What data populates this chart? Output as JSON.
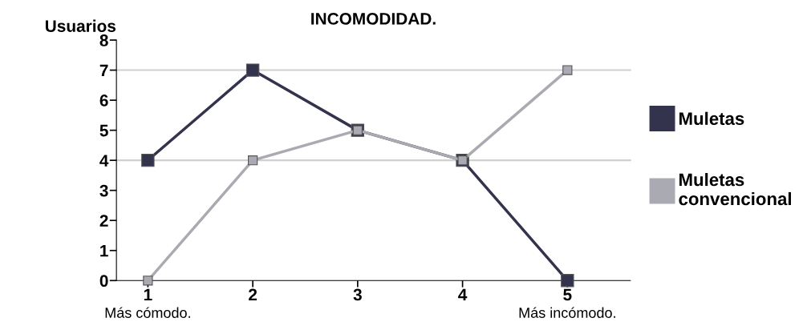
{
  "chart_data": {
    "type": "line",
    "title": "INCOMODIDAD.",
    "ylabel": "Usuarios",
    "x": [
      1,
      2,
      3,
      4,
      5
    ],
    "series": [
      {
        "name": "Muletas",
        "color": "#33334d",
        "values": [
          4,
          7,
          5,
          4,
          0
        ]
      },
      {
        "name": "Muletas convencional",
        "color": "#aaaab2",
        "values": [
          0,
          4,
          5,
          4,
          7
        ]
      }
    ],
    "xlim": [
      0.7,
      5.6
    ],
    "xticks": [
      1,
      2,
      3,
      4,
      5
    ],
    "ylim": [
      0,
      8
    ],
    "yticks": [
      0,
      1,
      2,
      3,
      4,
      5,
      6,
      7,
      8
    ],
    "ref_lines": [
      {
        "axis": "y",
        "value": 7,
        "label": null,
        "color": "#d0d0d0"
      },
      {
        "axis": "y",
        "value": 4,
        "label": null,
        "color": "#d0d0d0"
      }
    ],
    "annotations": [
      "Más cómodo.",
      "Más incómodo."
    ],
    "marker": "square",
    "line_style": "solid",
    "grid": false,
    "legend": "right"
  }
}
